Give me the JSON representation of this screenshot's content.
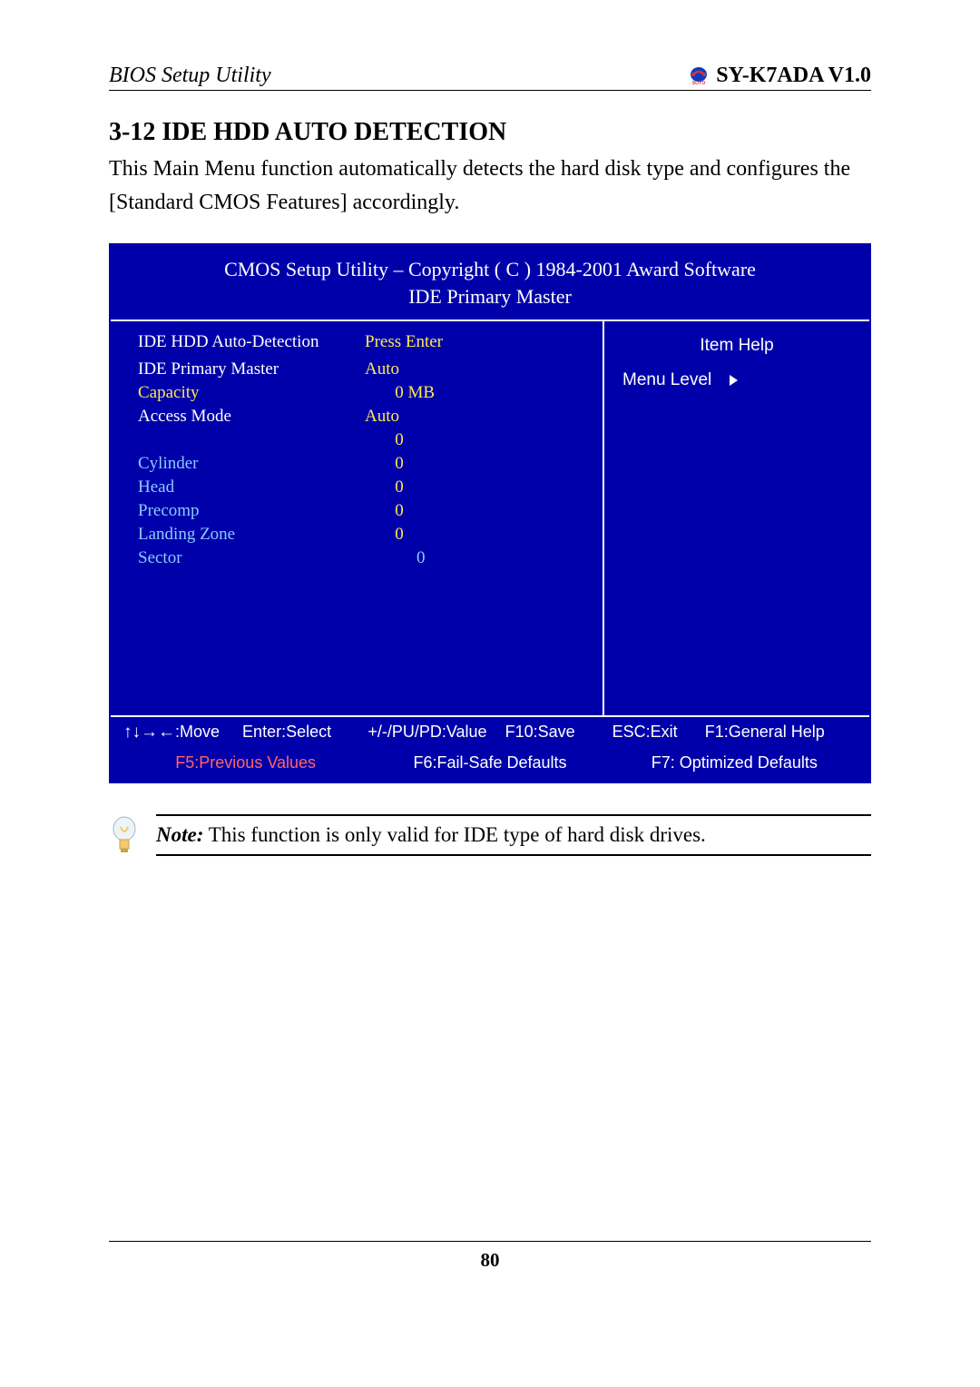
{
  "header": {
    "left": "BIOS Setup Utility",
    "right": "SY-K7ADA V1.0"
  },
  "section": {
    "title": "3-12  IDE HDD AUTO DETECTION",
    "intro": "This Main Menu function automatically detects the hard disk type and configures the [Standard CMOS Features] accordingly."
  },
  "bios": {
    "title_line1": "CMOS Setup Utility – Copyright ( C ) 1984-2001 Award Software",
    "title_line2": "IDE Primary Master",
    "help_title": "Item Help",
    "menu_level": "Menu Level",
    "rows": [
      {
        "label": "IDE HDD Auto-Detection",
        "value": "Press Enter",
        "lblClass": "white",
        "valClass": "yellow"
      },
      {
        "label": "",
        "value": "",
        "lblClass": "",
        "valClass": ""
      },
      {
        "label": "IDE Primary Master",
        "value": "Auto",
        "lblClass": "white",
        "valClass": "yellow"
      },
      {
        "label": "Capacity",
        "value": "0 MB",
        "lblClass": "yellow",
        "valClass": "yellow",
        "valIndent": true
      },
      {
        "label": "Access Mode",
        "value": "Auto",
        "lblClass": "white",
        "valClass": "yellow"
      },
      {
        "label": "",
        "value": "0",
        "lblClass": "",
        "valClass": "yellow",
        "valIndent": true
      },
      {
        "label": "Cylinder",
        "value": "0",
        "lblClass": "cyan",
        "valClass": "yellow",
        "valIndent": true
      },
      {
        "label": "Head",
        "value": "0",
        "lblClass": "cyan",
        "valClass": "yellow",
        "valIndent": true
      },
      {
        "label": "Precomp",
        "value": "0",
        "lblClass": "cyan",
        "valClass": "yellow",
        "valIndent": true
      },
      {
        "label": "Landing Zone",
        "value": "0",
        "lblClass": "cyan",
        "valClass": "yellow",
        "valIndent": true
      },
      {
        "label": "Sector",
        "value": "0",
        "lblClass": "cyan",
        "valClass": "cyan",
        "valIndent": true,
        "valExtraIndent": true
      }
    ],
    "foot1": {
      "move": ":Move",
      "enter": "Enter:Select",
      "pupd": "+/-/PU/PD:Value",
      "f10": "F10:Save",
      "esc": "ESC:Exit",
      "f1": "F1:General Help"
    },
    "foot2": {
      "f5": "F5:Previous Values",
      "f6": "F6:Fail-Safe Defaults",
      "f7": "F7: Optimized Defaults"
    }
  },
  "note": {
    "prefix": "Note:",
    "text": " This function is only valid for IDE type of hard disk drives."
  },
  "page_number": "80"
}
